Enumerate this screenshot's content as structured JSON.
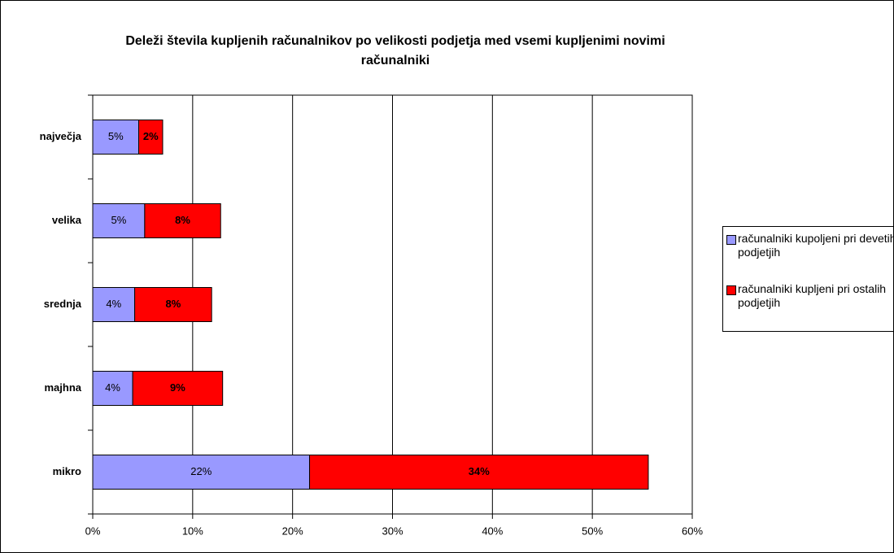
{
  "chart_data": {
    "type": "stacked_barh",
    "title": "Deleži števila kupljenih računalnikov po velikosti podjetja med vsemi kupljenimi novimi računalniki",
    "categories": [
      "največja",
      "velika",
      "srednja",
      "majhna",
      "mikro"
    ],
    "series": [
      {
        "name": "računalniki kupoljeni pri devetih podjetjih",
        "color": "#9999ff",
        "values": [
          4.6,
          5.2,
          4.2,
          4.0,
          21.7
        ],
        "value_labels": [
          "5%",
          "5%",
          "4%",
          "4%",
          "22%"
        ]
      },
      {
        "name": "računalniki kupljeni pri ostalih podjetjih",
        "color": "#ff0000",
        "values": [
          2.4,
          7.6,
          7.7,
          9.0,
          33.9
        ],
        "value_labels": [
          "2%",
          "8%",
          "8%",
          "9%",
          "34%"
        ]
      }
    ],
    "xlim": [
      0,
      60
    ],
    "xticks": [
      {
        "value": 0,
        "label": "0%"
      },
      {
        "value": 10,
        "label": "10%"
      },
      {
        "value": 20,
        "label": "20%"
      },
      {
        "value": 30,
        "label": "30%"
      },
      {
        "value": 40,
        "label": "40%"
      },
      {
        "value": 50,
        "label": "50%"
      },
      {
        "value": 60,
        "label": "60%"
      }
    ],
    "grid": true,
    "legend": "right"
  }
}
